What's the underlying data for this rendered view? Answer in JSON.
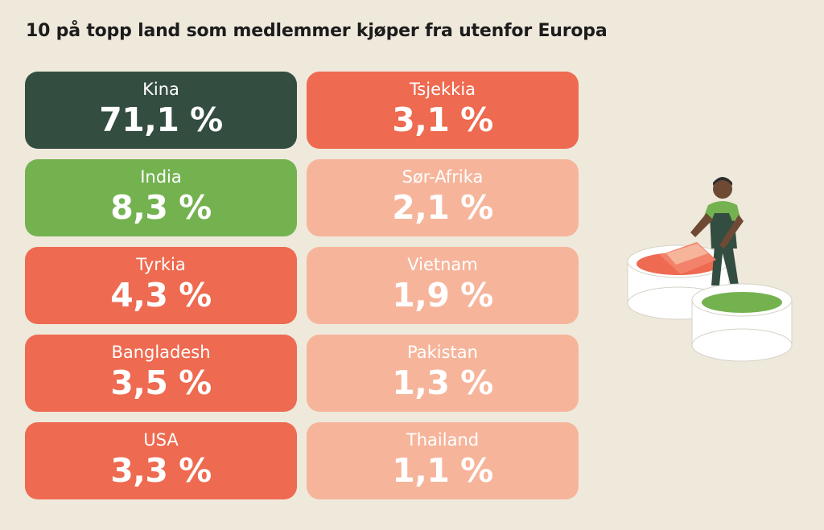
{
  "title": "10 på topp land som medlemmer kjøper fra utenfor Europa",
  "colors": {
    "top": "#344d41",
    "second": "#74b250",
    "mid": "#ee6a50",
    "low": "#f6b59b",
    "background": "#efe9dc"
  },
  "chart_data": {
    "type": "table",
    "title": "10 på topp land som medlemmer kjøper fra utenfor Europa",
    "unit": "%",
    "entries": [
      {
        "country": "Kina",
        "value": 71.1,
        "label": "71,1 %",
        "color": "#344d41"
      },
      {
        "country": "India",
        "value": 8.3,
        "label": "8,3 %",
        "color": "#74b250"
      },
      {
        "country": "Tyrkia",
        "value": 4.3,
        "label": "4,3 %",
        "color": "#ee6a50"
      },
      {
        "country": "Bangladesh",
        "value": 3.5,
        "label": "3,5 %",
        "color": "#ee6a50"
      },
      {
        "country": "USA",
        "value": 3.3,
        "label": "3,3 %",
        "color": "#ee6a50"
      },
      {
        "country": "Tsjekkia",
        "value": 3.1,
        "label": "3,1 %",
        "color": "#ee6a50"
      },
      {
        "country": "Sør-Afrika",
        "value": 2.1,
        "label": "2,1 %",
        "color": "#f6b59b"
      },
      {
        "country": "Vietnam",
        "value": 1.9,
        "label": "1,9 %",
        "color": "#f6b59b"
      },
      {
        "country": "Pakistan",
        "value": 1.3,
        "label": "1,3 %",
        "color": "#f6b59b"
      },
      {
        "country": "Thailand",
        "value": 1.1,
        "label": "1,1 %",
        "color": "#f6b59b"
      }
    ]
  },
  "illustration": {
    "icon": "worker-dyeing-fabric-icon"
  }
}
